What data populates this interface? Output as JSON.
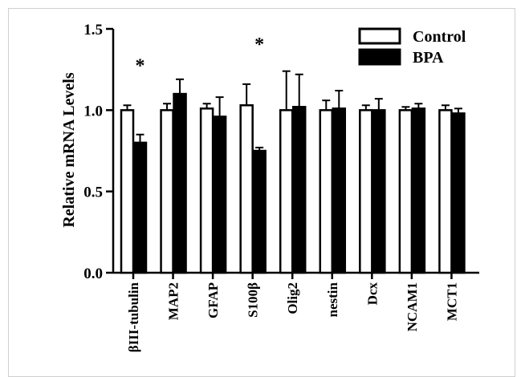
{
  "chart_data": {
    "type": "bar",
    "title": "",
    "xlabel": "",
    "ylabel": "Relative mRNA Levels",
    "ylim": [
      0,
      1.5
    ],
    "yticks": [
      "0.0",
      "0.5",
      "1.0",
      "1.5"
    ],
    "categories": [
      "βIII-tubulin",
      "MAP2",
      "GFAP",
      "S100β",
      "Olig2",
      "nestin",
      "Dcx",
      "NCAM1",
      "MCT1"
    ],
    "series": [
      {
        "name": "Control",
        "color": "#ffffff",
        "values": [
          1.0,
          1.0,
          1.01,
          1.03,
          1.0,
          1.0,
          1.0,
          1.0,
          1.0
        ],
        "errors": [
          0.03,
          0.04,
          0.03,
          0.13,
          0.24,
          0.06,
          0.03,
          0.02,
          0.03
        ]
      },
      {
        "name": "BPA",
        "color": "#000000",
        "values": [
          0.8,
          1.1,
          0.96,
          0.75,
          1.02,
          1.01,
          1.0,
          1.01,
          0.98
        ],
        "errors": [
          0.05,
          0.09,
          0.12,
          0.02,
          0.2,
          0.11,
          0.07,
          0.03,
          0.03
        ]
      }
    ],
    "significance": [
      "*",
      "",
      "",
      "*",
      "",
      "",
      "",
      "",
      ""
    ],
    "legend_position": "top-right",
    "grid": false
  }
}
